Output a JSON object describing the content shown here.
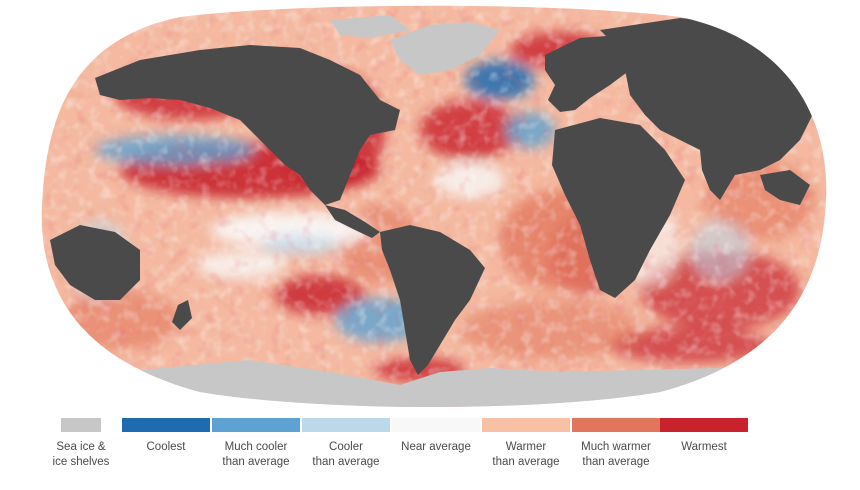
{
  "map": {
    "projection": "robinson",
    "land_color": "#4a4a4a",
    "ice_color": "#c7c7c7",
    "ocean_base_color": "#f4b9a0"
  },
  "legend": {
    "items": [
      {
        "lines": [
          "Sea ice &",
          "ice shelves"
        ],
        "color": "#c7c7c7"
      },
      {
        "lines": [
          "Coolest"
        ],
        "color": "#1f6bb0"
      },
      {
        "lines": [
          "Much cooler",
          "than average"
        ],
        "color": "#5da2d2"
      },
      {
        "lines": [
          "Cooler",
          "than average"
        ],
        "color": "#bcd9ec"
      },
      {
        "lines": [
          "Near average"
        ],
        "color": "#f8f8f8"
      },
      {
        "lines": [
          "Warmer",
          "than average"
        ],
        "color": "#f8c1a6"
      },
      {
        "lines": [
          "Much warmer",
          "than average"
        ],
        "color": "#e2765c"
      },
      {
        "lines": [
          "Warmest"
        ],
        "color": "#c8232d"
      }
    ]
  }
}
